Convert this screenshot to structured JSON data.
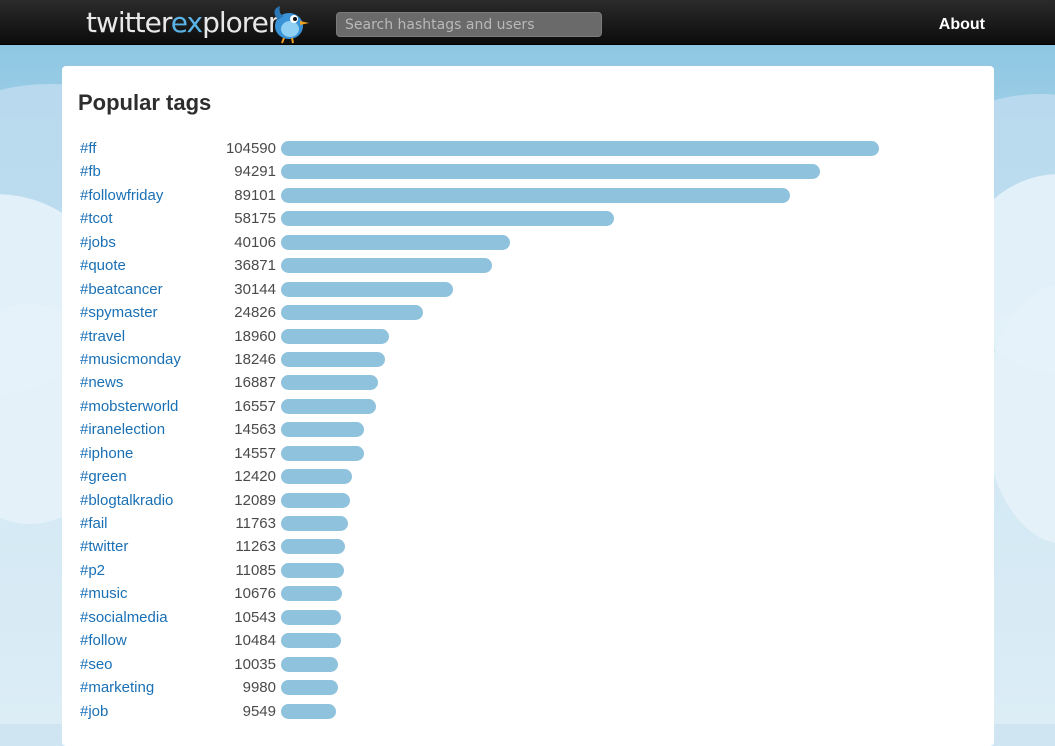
{
  "header": {
    "logo_part1": "twitter",
    "logo_part2": "ex",
    "logo_part3": "plorer",
    "search_placeholder": "Search hashtags and users",
    "about_label": "About"
  },
  "main": {
    "title": "Popular tags"
  },
  "colors": {
    "bar": "#8ec2dd",
    "link": "#1a70b5",
    "logo_accent": "#5ab3e6"
  },
  "chart_data": {
    "type": "bar",
    "orientation": "horizontal",
    "title": "Popular tags",
    "categories": [
      "#ff",
      "#fb",
      "#followfriday",
      "#tcot",
      "#jobs",
      "#quote",
      "#beatcancer",
      "#spymaster",
      "#travel",
      "#musicmonday",
      "#news",
      "#mobsterworld",
      "#iranelection",
      "#iphone",
      "#green",
      "#blogtalkradio",
      "#fail",
      "#twitter",
      "#p2",
      "#music",
      "#socialmedia",
      "#follow",
      "#seo",
      "#marketing",
      "#job"
    ],
    "values": [
      104590,
      94291,
      89101,
      58175,
      40106,
      36871,
      30144,
      24826,
      18960,
      18246,
      16887,
      16557,
      14563,
      14557,
      12420,
      12089,
      11763,
      11263,
      11085,
      10676,
      10543,
      10484,
      10035,
      9980,
      9549
    ]
  }
}
